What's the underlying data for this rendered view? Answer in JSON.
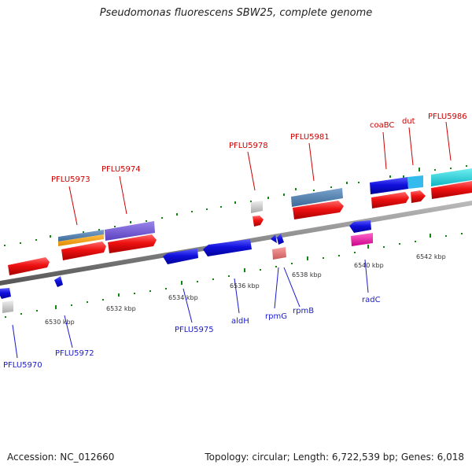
{
  "title": "Pseudomonas fluorescens SBW25, complete genome",
  "footer": {
    "accession": "Accession: NC_012660",
    "summary": "Topology: circular; Length: 6,722,539 bp; Genes: 6,018"
  },
  "colors": {
    "backbone": "#888888",
    "forward_cds": "#ee1111",
    "reverse_cds": "#1111dd",
    "label_forward": "#cc0000",
    "label_reverse": "#1a1acc",
    "tick_major": "#118811",
    "tick_minor": "#118811"
  },
  "scale_labels": [
    {
      "id": "kbp-6530",
      "text": "6530 kbp"
    },
    {
      "id": "kbp-6532",
      "text": "6532 kbp"
    },
    {
      "id": "kbp-6534",
      "text": "6534 kbp"
    },
    {
      "id": "kbp-6536",
      "text": "6536 kbp"
    },
    {
      "id": "kbp-6538",
      "text": "6538 kbp"
    },
    {
      "id": "kbp-6540",
      "text": "6540 kbp"
    },
    {
      "id": "kbp-6542",
      "text": "6542 kbp"
    }
  ],
  "gene_labels_forward": [
    {
      "id": "pflu5973",
      "text": "PFLU5973"
    },
    {
      "id": "pflu5974",
      "text": "PFLU5974"
    },
    {
      "id": "pflu5978",
      "text": "PFLU5978"
    },
    {
      "id": "pflu5981",
      "text": "PFLU5981"
    },
    {
      "id": "coabc",
      "text": "coaBC"
    },
    {
      "id": "dut",
      "text": "dut"
    },
    {
      "id": "pflu5986",
      "text": "PFLU5986"
    }
  ],
  "gene_labels_reverse": [
    {
      "id": "pflu5970",
      "text": "PFLU5970"
    },
    {
      "id": "pflu5972",
      "text": "PFLU5972"
    },
    {
      "id": "pflu5975",
      "text": "PFLU5975"
    },
    {
      "id": "aldh",
      "text": "aldH"
    },
    {
      "id": "rpmg",
      "text": "rpmG"
    },
    {
      "id": "rpmb",
      "text": "rpmB"
    },
    {
      "id": "radc",
      "text": "radC"
    }
  ]
}
